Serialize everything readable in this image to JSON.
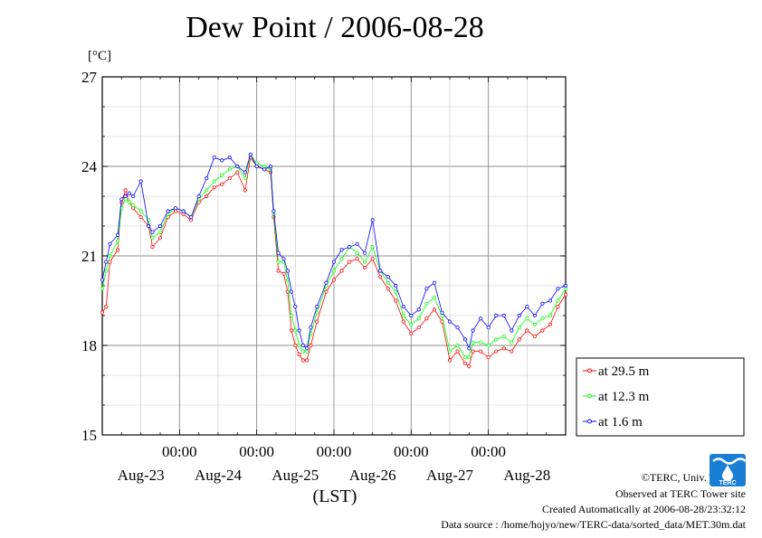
{
  "chart_data": {
    "type": "line",
    "title": "Dew Point / 2006-08-28",
    "unit_label": "[°C]",
    "xlabel": "(LST)",
    "ylabel": "",
    "ylim": [
      15,
      27
    ],
    "yticks": [
      15,
      18,
      21,
      24,
      27
    ],
    "xlim": [
      0,
      6
    ],
    "time_tick_label": "00:00",
    "time_ticks": [
      1,
      2,
      3,
      4,
      5
    ],
    "day_labels": [
      "Aug-23",
      "Aug-24",
      "Aug-25",
      "Aug-26",
      "Aug-27",
      "Aug-28"
    ],
    "grid": true,
    "legend_position": "right",
    "series": [
      {
        "name": "at 29.5 m",
        "color": "#ff0000",
        "points": [
          [
            0.0,
            19.1
          ],
          [
            0.05,
            19.3
          ],
          [
            0.1,
            20.8
          ],
          [
            0.2,
            21.2
          ],
          [
            0.25,
            22.8
          ],
          [
            0.3,
            23.2
          ],
          [
            0.35,
            22.8
          ],
          [
            0.4,
            22.6
          ],
          [
            0.5,
            22.3
          ],
          [
            0.6,
            22.0
          ],
          [
            0.65,
            21.3
          ],
          [
            0.75,
            21.6
          ],
          [
            0.85,
            22.3
          ],
          [
            0.95,
            22.5
          ],
          [
            1.05,
            22.4
          ],
          [
            1.15,
            22.2
          ],
          [
            1.25,
            22.8
          ],
          [
            1.35,
            23.0
          ],
          [
            1.45,
            23.3
          ],
          [
            1.55,
            23.4
          ],
          [
            1.65,
            23.6
          ],
          [
            1.75,
            23.8
          ],
          [
            1.85,
            23.2
          ],
          [
            1.92,
            24.3
          ],
          [
            2.0,
            24.0
          ],
          [
            2.1,
            23.9
          ],
          [
            2.18,
            23.8
          ],
          [
            2.22,
            22.3
          ],
          [
            2.28,
            20.5
          ],
          [
            2.35,
            20.4
          ],
          [
            2.4,
            19.8
          ],
          [
            2.45,
            18.5
          ],
          [
            2.5,
            18.0
          ],
          [
            2.55,
            17.7
          ],
          [
            2.6,
            17.5
          ],
          [
            2.65,
            17.5
          ],
          [
            2.7,
            18.0
          ],
          [
            2.78,
            18.8
          ],
          [
            2.9,
            19.8
          ],
          [
            3.0,
            20.2
          ],
          [
            3.1,
            20.5
          ],
          [
            3.2,
            20.8
          ],
          [
            3.3,
            20.9
          ],
          [
            3.4,
            20.6
          ],
          [
            3.5,
            20.9
          ],
          [
            3.6,
            20.3
          ],
          [
            3.7,
            19.9
          ],
          [
            3.8,
            19.5
          ],
          [
            3.9,
            18.8
          ],
          [
            4.0,
            18.4
          ],
          [
            4.1,
            18.6
          ],
          [
            4.2,
            18.9
          ],
          [
            4.3,
            19.2
          ],
          [
            4.4,
            18.8
          ],
          [
            4.5,
            17.5
          ],
          [
            4.6,
            17.8
          ],
          [
            4.7,
            17.4
          ],
          [
            4.75,
            17.3
          ],
          [
            4.8,
            17.8
          ],
          [
            4.9,
            17.8
          ],
          [
            5.0,
            17.6
          ],
          [
            5.1,
            17.8
          ],
          [
            5.2,
            17.9
          ],
          [
            5.3,
            17.8
          ],
          [
            5.4,
            18.2
          ],
          [
            5.5,
            18.5
          ],
          [
            5.6,
            18.3
          ],
          [
            5.7,
            18.5
          ],
          [
            5.8,
            18.7
          ],
          [
            5.9,
            19.3
          ],
          [
            6.0,
            19.7
          ]
        ]
      },
      {
        "name": "at 12.3 m",
        "color": "#00ff00",
        "points": [
          [
            0.0,
            19.9
          ],
          [
            0.05,
            20.5
          ],
          [
            0.1,
            21.0
          ],
          [
            0.2,
            21.5
          ],
          [
            0.25,
            22.6
          ],
          [
            0.3,
            22.9
          ],
          [
            0.35,
            22.8
          ],
          [
            0.4,
            22.7
          ],
          [
            0.5,
            22.5
          ],
          [
            0.6,
            22.2
          ],
          [
            0.65,
            21.6
          ],
          [
            0.75,
            21.8
          ],
          [
            0.85,
            22.4
          ],
          [
            0.95,
            22.6
          ],
          [
            1.05,
            22.5
          ],
          [
            1.15,
            22.3
          ],
          [
            1.25,
            22.9
          ],
          [
            1.35,
            23.2
          ],
          [
            1.45,
            23.5
          ],
          [
            1.55,
            23.7
          ],
          [
            1.65,
            23.9
          ],
          [
            1.75,
            24.0
          ],
          [
            1.85,
            23.6
          ],
          [
            1.92,
            24.4
          ],
          [
            2.0,
            24.1
          ],
          [
            2.1,
            24.0
          ],
          [
            2.18,
            23.9
          ],
          [
            2.22,
            22.4
          ],
          [
            2.28,
            20.8
          ],
          [
            2.35,
            20.8
          ],
          [
            2.4,
            20.2
          ],
          [
            2.45,
            19.0
          ],
          [
            2.5,
            18.5
          ],
          [
            2.55,
            18.0
          ],
          [
            2.6,
            17.8
          ],
          [
            2.65,
            17.8
          ],
          [
            2.7,
            18.4
          ],
          [
            2.78,
            19.1
          ],
          [
            2.9,
            20.0
          ],
          [
            3.0,
            20.5
          ],
          [
            3.1,
            20.9
          ],
          [
            3.2,
            21.3
          ],
          [
            3.3,
            21.1
          ],
          [
            3.4,
            20.8
          ],
          [
            3.5,
            21.3
          ],
          [
            3.6,
            20.5
          ],
          [
            3.7,
            20.1
          ],
          [
            3.8,
            19.8
          ],
          [
            3.9,
            19.0
          ],
          [
            4.0,
            18.7
          ],
          [
            4.1,
            18.9
          ],
          [
            4.2,
            19.4
          ],
          [
            4.3,
            19.6
          ],
          [
            4.4,
            19.0
          ],
          [
            4.5,
            17.8
          ],
          [
            4.6,
            18.0
          ],
          [
            4.7,
            17.6
          ],
          [
            4.75,
            17.6
          ],
          [
            4.8,
            18.1
          ],
          [
            4.9,
            18.1
          ],
          [
            5.0,
            18.0
          ],
          [
            5.1,
            18.2
          ],
          [
            5.2,
            18.3
          ],
          [
            5.3,
            18.1
          ],
          [
            5.4,
            18.6
          ],
          [
            5.5,
            18.9
          ],
          [
            5.6,
            18.7
          ],
          [
            5.7,
            18.9
          ],
          [
            5.8,
            19.0
          ],
          [
            5.9,
            19.5
          ],
          [
            6.0,
            19.9
          ]
        ]
      },
      {
        "name": "at 1.6 m",
        "color": "#0000ff",
        "points": [
          [
            0.0,
            20.2
          ],
          [
            0.05,
            20.8
          ],
          [
            0.1,
            21.4
          ],
          [
            0.2,
            21.7
          ],
          [
            0.25,
            22.9
          ],
          [
            0.3,
            23.0
          ],
          [
            0.35,
            23.1
          ],
          [
            0.4,
            23.0
          ],
          [
            0.5,
            23.5
          ],
          [
            0.6,
            22.0
          ],
          [
            0.65,
            21.8
          ],
          [
            0.75,
            22.0
          ],
          [
            0.85,
            22.5
          ],
          [
            0.95,
            22.6
          ],
          [
            1.05,
            22.5
          ],
          [
            1.15,
            22.3
          ],
          [
            1.25,
            23.0
          ],
          [
            1.35,
            23.6
          ],
          [
            1.45,
            24.3
          ],
          [
            1.55,
            24.2
          ],
          [
            1.65,
            24.3
          ],
          [
            1.75,
            24.0
          ],
          [
            1.85,
            23.8
          ],
          [
            1.92,
            24.4
          ],
          [
            2.0,
            24.0
          ],
          [
            2.1,
            23.9
          ],
          [
            2.18,
            24.0
          ],
          [
            2.22,
            22.5
          ],
          [
            2.28,
            21.1
          ],
          [
            2.35,
            20.9
          ],
          [
            2.4,
            20.5
          ],
          [
            2.45,
            19.8
          ],
          [
            2.5,
            19.3
          ],
          [
            2.55,
            18.5
          ],
          [
            2.6,
            18.0
          ],
          [
            2.65,
            17.9
          ],
          [
            2.7,
            18.6
          ],
          [
            2.78,
            19.3
          ],
          [
            2.9,
            20.1
          ],
          [
            3.0,
            20.8
          ],
          [
            3.1,
            21.2
          ],
          [
            3.2,
            21.3
          ],
          [
            3.3,
            21.4
          ],
          [
            3.4,
            21.1
          ],
          [
            3.5,
            22.2
          ],
          [
            3.6,
            20.5
          ],
          [
            3.7,
            20.3
          ],
          [
            3.8,
            20.0
          ],
          [
            3.9,
            19.3
          ],
          [
            4.0,
            19.0
          ],
          [
            4.1,
            19.2
          ],
          [
            4.2,
            19.9
          ],
          [
            4.3,
            20.1
          ],
          [
            4.4,
            19.1
          ],
          [
            4.5,
            18.8
          ],
          [
            4.6,
            18.6
          ],
          [
            4.7,
            18.2
          ],
          [
            4.75,
            17.9
          ],
          [
            4.8,
            18.5
          ],
          [
            4.9,
            18.9
          ],
          [
            5.0,
            18.6
          ],
          [
            5.1,
            19.0
          ],
          [
            5.2,
            19.0
          ],
          [
            5.3,
            18.5
          ],
          [
            5.4,
            19.0
          ],
          [
            5.5,
            19.3
          ],
          [
            5.6,
            19.0
          ],
          [
            5.7,
            19.4
          ],
          [
            5.8,
            19.5
          ],
          [
            5.9,
            19.9
          ],
          [
            6.0,
            20.0
          ]
        ]
      }
    ]
  },
  "footer": {
    "copyright": "©TERC, Univ. Tsukuba",
    "observed": "Observed at TERC Tower site",
    "created": "Created Automatically at 2006-08-28/23:32:12",
    "source": "Data source : /home/hojyo/new/TERC-data/sorted_data/MET.30m.dat"
  },
  "logo": {
    "text": "TERC",
    "color": "#1a7fd4"
  }
}
